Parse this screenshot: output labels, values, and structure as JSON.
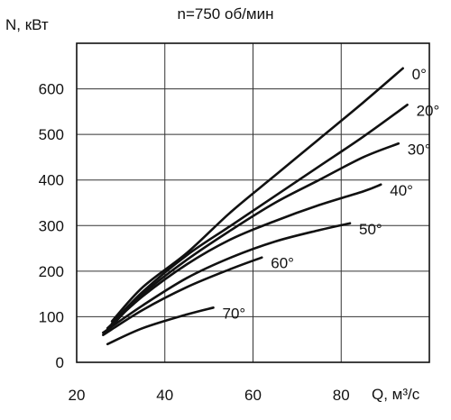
{
  "chart_data": {
    "type": "line",
    "title": "n=750 об/мин",
    "ylabel": "N, кВт",
    "xlabel": "Q, м³/с",
    "xlim": [
      20,
      100
    ],
    "ylim": [
      0,
      700
    ],
    "x_ticks": [
      20,
      40,
      60,
      80
    ],
    "y_ticks": [
      0,
      100,
      200,
      300,
      400,
      500,
      600
    ],
    "grid": true,
    "series": [
      {
        "name": "0°",
        "x": [
          28,
          35,
          45,
          55,
          65,
          75,
          85,
          94
        ],
        "y": [
          90,
          165,
          240,
          330,
          410,
          490,
          570,
          645
        ]
      },
      {
        "name": "20°",
        "x": [
          28,
          35,
          45,
          55,
          65,
          75,
          85,
          95
        ],
        "y": [
          85,
          155,
          235,
          300,
          365,
          430,
          495,
          565
        ]
      },
      {
        "name": "30°",
        "x": [
          28,
          35,
          45,
          55,
          65,
          75,
          85,
          93
        ],
        "y": [
          80,
          150,
          225,
          290,
          350,
          400,
          450,
          480
        ]
      },
      {
        "name": "40°",
        "x": [
          27,
          35,
          45,
          55,
          65,
          75,
          85,
          89
        ],
        "y": [
          75,
          145,
          215,
          270,
          310,
          345,
          375,
          390
        ]
      },
      {
        "name": "50°",
        "x": [
          26,
          35,
          45,
          55,
          65,
          75,
          82
        ],
        "y": [
          65,
          125,
          185,
          230,
          265,
          290,
          305
        ]
      },
      {
        "name": "60°",
        "x": [
          26,
          35,
          45,
          55,
          62
        ],
        "y": [
          60,
          115,
          165,
          205,
          230
        ]
      },
      {
        "name": "70°",
        "x": [
          27,
          35,
          45,
          51
        ],
        "y": [
          40,
          75,
          105,
          120
        ]
      }
    ]
  }
}
